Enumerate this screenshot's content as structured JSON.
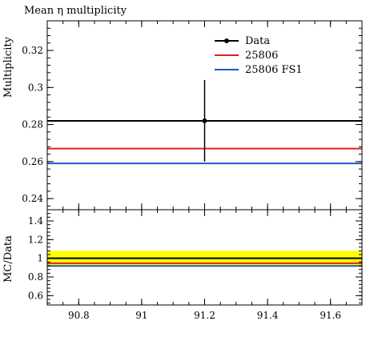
{
  "chart_data": {
    "type": "line",
    "title": "Mean η multiplicity",
    "main": {
      "ylabel": "Multiplicity",
      "xlim": [
        90.7,
        91.7
      ],
      "ylim": [
        0.234,
        0.336
      ],
      "yticks": [
        0.24,
        0.26,
        0.28,
        0.3,
        0.32
      ],
      "ytick_labels": [
        "0.24",
        "0.26",
        "0.28",
        "0.3",
        "0.32"
      ],
      "data_point": {
        "x": 91.2,
        "y": 0.282,
        "yerr_low": 0.022,
        "yerr_high": 0.022
      },
      "series": [
        {
          "name": "Data",
          "y": 0.282,
          "color": "#000000",
          "marker": true
        },
        {
          "name": "25806",
          "y": 0.267,
          "color": "#dd2222",
          "marker": false
        },
        {
          "name": "25806 FS1",
          "y": 0.259,
          "color": "#2255cc",
          "marker": false
        }
      ],
      "legend_position": "top-right"
    },
    "ratio": {
      "ylabel": "MC/Data",
      "xlim": [
        90.7,
        91.7
      ],
      "ylim": [
        0.5,
        1.52
      ],
      "yticks": [
        0.6,
        0.8,
        1.0,
        1.2,
        1.4
      ],
      "ytick_labels": [
        "0.6",
        "0.8",
        "1",
        "1.2",
        "1.4"
      ],
      "band": {
        "low": 0.92,
        "high": 1.08,
        "color": "#ffff00"
      },
      "lines": [
        {
          "y": 1.0,
          "color": "#000000"
        },
        {
          "y": 0.947,
          "color": "#dd2222"
        },
        {
          "y": 0.918,
          "color": "#2255cc"
        }
      ]
    },
    "xticks": [
      90.8,
      91,
      91.2,
      91.4,
      91.6
    ],
    "xtick_labels": [
      "90.8",
      "91",
      "91.2",
      "91.4",
      "91.6"
    ]
  }
}
